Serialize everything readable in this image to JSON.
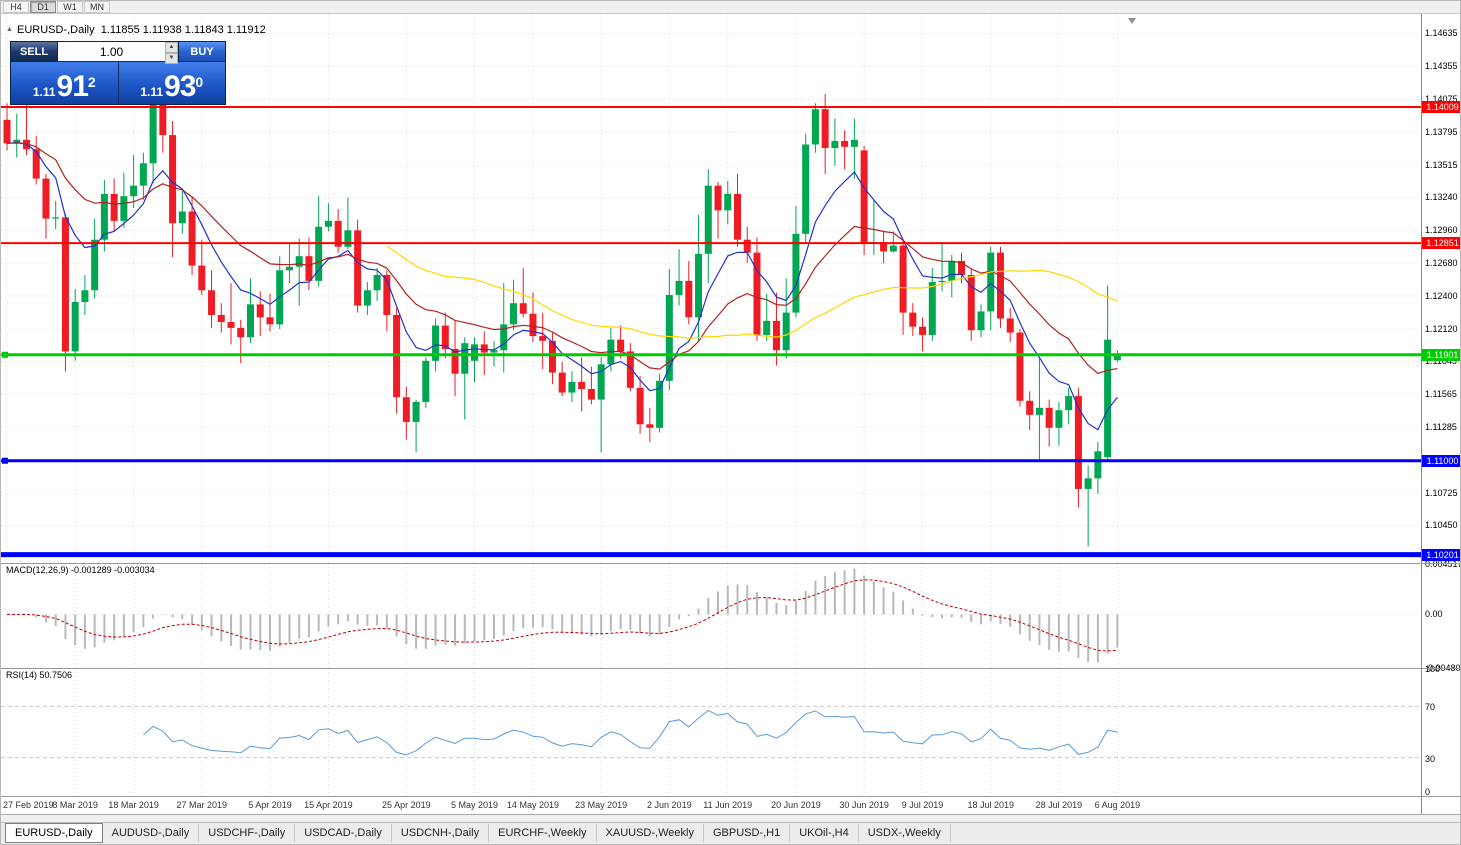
{
  "toolbar": {
    "timeframes": [
      "H4",
      "D1",
      "W1",
      "MN"
    ],
    "active_timeframe": "D1"
  },
  "chart": {
    "symbol_period": "EURUSD-,Daily",
    "ohlc_text": "1.11855 1.11938 1.11843 1.11912"
  },
  "icons": {
    "collapse_arrow": "▲",
    "spinner_up": "▲",
    "spinner_down": "▼"
  },
  "trade_panel": {
    "sell_label": "SELL",
    "buy_label": "BUY",
    "volume": "1.00",
    "sell_price": {
      "small": "1.11",
      "big": "91",
      "sup": "2"
    },
    "buy_price": {
      "small": "1.11",
      "big": "93",
      "sup": "0"
    }
  },
  "indicators": {
    "macd": {
      "name": "MACD(12,26,9)",
      "values": "-0.001289 -0.003034",
      "fast": 12,
      "slow": 26,
      "signal": 9,
      "axis_labels": [
        "0.004517",
        "0.00",
        "-0.004806"
      ]
    },
    "rsi": {
      "name": "RSI(14)",
      "value": "50.7506",
      "period": 14,
      "axis_labels": [
        "100",
        "70",
        "30",
        "0"
      ],
      "levels": [
        70,
        30
      ]
    }
  },
  "tabs": {
    "items": [
      "EURUSD-,Daily",
      "AUDUSD-,Daily",
      "USDCHF-,Daily",
      "USDCAD-,Daily",
      "USDCNH-,Daily",
      "EURCHF-,Weekly",
      "XAUUSD-,Weekly",
      "GBPUSD-,H1",
      "UKOil-,H4",
      "USDX-,Weekly"
    ],
    "active": "EURUSD-,Daily"
  },
  "chart_data": {
    "type": "candlestick",
    "symbol": "EURUSD-",
    "timeframe": "Daily",
    "up_color": "#00A651",
    "down_color": "#EE1C25",
    "price_ticks": [
      "1.14635",
      "1.14355",
      "1.14075",
      "1.13795",
      "1.13515",
      "1.13240",
      "1.12960",
      "1.12680",
      "1.12400",
      "1.12120",
      "1.11845",
      "1.11565",
      "1.11285",
      "1.10725",
      "1.10450"
    ],
    "hlines": [
      {
        "price": 1.14009,
        "label": "1.14009",
        "color": "#FF0000",
        "width": 2
      },
      {
        "price": 1.12851,
        "label": "1.12851",
        "color": "#FF0000",
        "width": 2
      },
      {
        "price": 1.11901,
        "label": "1.11901",
        "color": "#00CC00",
        "width": 3,
        "anchor": true
      },
      {
        "price": 1.11,
        "label": "1.11000",
        "color": "#0000FF",
        "width": 3,
        "anchor": true
      },
      {
        "price": 1.10201,
        "label": "1.10201",
        "color": "#0000FF",
        "width": 5
      }
    ],
    "moving_averages": [
      {
        "type": "ema",
        "period": 8,
        "color": "#2233CC"
      },
      {
        "type": "ema",
        "period": 20,
        "color": "#B22222"
      },
      {
        "type": "sma",
        "period": 40,
        "color": "#FFD700"
      }
    ],
    "date_labels": [
      {
        "text": "27 Feb 2019",
        "idx": 0
      },
      {
        "text": "8 Mar 2019",
        "idx": 7
      },
      {
        "text": "18 Mar 2019",
        "idx": 13
      },
      {
        "text": "27 Mar 2019",
        "idx": 20
      },
      {
        "text": "5 Apr 2019",
        "idx": 27
      },
      {
        "text": "15 Apr 2019",
        "idx": 33
      },
      {
        "text": "25 Apr 2019",
        "idx": 41
      },
      {
        "text": "5 May 2019",
        "idx": 48
      },
      {
        "text": "14 May 2019",
        "idx": 54
      },
      {
        "text": "23 May 2019",
        "idx": 61
      },
      {
        "text": "2 Jun 2019",
        "idx": 68
      },
      {
        "text": "11 Jun 2019",
        "idx": 74
      },
      {
        "text": "20 Jun 2019",
        "idx": 81
      },
      {
        "text": "30 Jun 2019",
        "idx": 88
      },
      {
        "text": "9 Jul 2019",
        "idx": 94
      },
      {
        "text": "18 Jul 2019",
        "idx": 101
      },
      {
        "text": "28 Jul 2019",
        "idx": 108
      },
      {
        "text": "6 Aug 2019",
        "idx": 114
      }
    ],
    "ohlc": [
      [
        1.139,
        1.1404,
        1.1364,
        1.137
      ],
      [
        1.137,
        1.1395,
        1.1358,
        1.1373
      ],
      [
        1.1373,
        1.1408,
        1.136,
        1.1365
      ],
      [
        1.1365,
        1.1376,
        1.1335,
        1.134
      ],
      [
        1.134,
        1.1344,
        1.1289,
        1.1306
      ],
      [
        1.1306,
        1.1321,
        1.1297,
        1.1307
      ],
      [
        1.1307,
        1.131,
        1.1176,
        1.1193
      ],
      [
        1.1193,
        1.1246,
        1.1185,
        1.1235
      ],
      [
        1.1235,
        1.1258,
        1.1224,
        1.1245
      ],
      [
        1.1245,
        1.1306,
        1.1238,
        1.1288
      ],
      [
        1.1288,
        1.1339,
        1.1278,
        1.1327
      ],
      [
        1.1327,
        1.134,
        1.1295,
        1.1304
      ],
      [
        1.1304,
        1.1345,
        1.1298,
        1.1325
      ],
      [
        1.1325,
        1.136,
        1.1315,
        1.1334
      ],
      [
        1.1334,
        1.1362,
        1.1322,
        1.1353
      ],
      [
        1.1353,
        1.1412,
        1.1336,
        1.1405
      ],
      [
        1.1405,
        1.1414,
        1.1362,
        1.1377
      ],
      [
        1.1377,
        1.1389,
        1.1273,
        1.1302
      ],
      [
        1.1302,
        1.133,
        1.1293,
        1.1312
      ],
      [
        1.1312,
        1.1325,
        1.1258,
        1.1266
      ],
      [
        1.1266,
        1.1288,
        1.1241,
        1.1245
      ],
      [
        1.1245,
        1.1262,
        1.1213,
        1.1224
      ],
      [
        1.1224,
        1.1234,
        1.1209,
        1.1218
      ],
      [
        1.1218,
        1.1251,
        1.1199,
        1.1213
      ],
      [
        1.1213,
        1.122,
        1.1183,
        1.1205
      ],
      [
        1.1205,
        1.1255,
        1.12,
        1.1233
      ],
      [
        1.1233,
        1.1244,
        1.1206,
        1.1222
      ],
      [
        1.1222,
        1.1242,
        1.121,
        1.1216
      ],
      [
        1.1216,
        1.1274,
        1.1212,
        1.1262
      ],
      [
        1.1262,
        1.1285,
        1.1251,
        1.1265
      ],
      [
        1.1265,
        1.1289,
        1.1232,
        1.1274
      ],
      [
        1.1274,
        1.129,
        1.1245,
        1.1253
      ],
      [
        1.1253,
        1.1325,
        1.1248,
        1.1299
      ],
      [
        1.1299,
        1.1319,
        1.1295,
        1.1304
      ],
      [
        1.1304,
        1.1314,
        1.1277,
        1.1282
      ],
      [
        1.1282,
        1.1324,
        1.128,
        1.1296
      ],
      [
        1.1296,
        1.1305,
        1.1226,
        1.1232
      ],
      [
        1.1232,
        1.1252,
        1.1224,
        1.1245
      ],
      [
        1.1245,
        1.1264,
        1.1236,
        1.1258
      ],
      [
        1.1258,
        1.1262,
        1.121,
        1.1224
      ],
      [
        1.1224,
        1.123,
        1.114,
        1.1154
      ],
      [
        1.1154,
        1.1163,
        1.1118,
        1.1133
      ],
      [
        1.1133,
        1.1152,
        1.1107,
        1.115
      ],
      [
        1.115,
        1.1188,
        1.1145,
        1.1185
      ],
      [
        1.1185,
        1.1221,
        1.1176,
        1.1215
      ],
      [
        1.1215,
        1.1226,
        1.1187,
        1.1195
      ],
      [
        1.1195,
        1.1219,
        1.1155,
        1.1174
      ],
      [
        1.1174,
        1.1205,
        1.1135,
        1.12
      ],
      [
        1.1185,
        1.1205,
        1.1167,
        1.1199
      ],
      [
        1.1199,
        1.121,
        1.1173,
        1.1192
      ],
      [
        1.1192,
        1.1202,
        1.118,
        1.1194
      ],
      [
        1.1194,
        1.1251,
        1.1175,
        1.1216
      ],
      [
        1.1216,
        1.1254,
        1.1211,
        1.1234
      ],
      [
        1.1234,
        1.1264,
        1.1222,
        1.1225
      ],
      [
        1.1225,
        1.1243,
        1.1201,
        1.1206
      ],
      [
        1.1206,
        1.1226,
        1.1178,
        1.1202
      ],
      [
        1.1202,
        1.121,
        1.1165,
        1.1175
      ],
      [
        1.1175,
        1.1184,
        1.1155,
        1.1158
      ],
      [
        1.1158,
        1.1176,
        1.115,
        1.1167
      ],
      [
        1.1167,
        1.1188,
        1.1142,
        1.1161
      ],
      [
        1.1161,
        1.118,
        1.1148,
        1.1152
      ],
      [
        1.1152,
        1.1188,
        1.1107,
        1.1182
      ],
      [
        1.1182,
        1.1213,
        1.1176,
        1.1203
      ],
      [
        1.1203,
        1.1215,
        1.1187,
        1.1193
      ],
      [
        1.1193,
        1.12,
        1.1159,
        1.1162
      ],
      [
        1.1162,
        1.1172,
        1.1123,
        1.1131
      ],
      [
        1.1131,
        1.1145,
        1.1116,
        1.1128
      ],
      [
        1.1128,
        1.1174,
        1.1124,
        1.1168
      ],
      [
        1.1168,
        1.1263,
        1.116,
        1.1241
      ],
      [
        1.1241,
        1.128,
        1.1232,
        1.1253
      ],
      [
        1.1253,
        1.127,
        1.1216,
        1.1222
      ],
      [
        1.1222,
        1.1309,
        1.1201,
        1.1276
      ],
      [
        1.1276,
        1.1348,
        1.1251,
        1.1334
      ],
      [
        1.1334,
        1.1337,
        1.1289,
        1.1313
      ],
      [
        1.1313,
        1.1338,
        1.1301,
        1.1327
      ],
      [
        1.1327,
        1.1344,
        1.1282,
        1.1288
      ],
      [
        1.1288,
        1.1299,
        1.1268,
        1.1277
      ],
      [
        1.1277,
        1.129,
        1.1202,
        1.1207
      ],
      [
        1.1207,
        1.1242,
        1.1202,
        1.1219
      ],
      [
        1.1219,
        1.1243,
        1.1181,
        1.1194
      ],
      [
        1.1194,
        1.1255,
        1.1187,
        1.1226
      ],
      [
        1.1226,
        1.1317,
        1.1222,
        1.1293
      ],
      [
        1.1293,
        1.1378,
        1.1285,
        1.1369
      ],
      [
        1.1369,
        1.1404,
        1.1362,
        1.1399
      ],
      [
        1.1399,
        1.1412,
        1.1344,
        1.1366
      ],
      [
        1.1366,
        1.1391,
        1.1351,
        1.1372
      ],
      [
        1.1372,
        1.1381,
        1.1348,
        1.1367
      ],
      [
        1.1367,
        1.1391,
        1.134,
        1.1373
      ],
      [
        1.1364,
        1.1368,
        1.1275,
        1.1285
      ],
      [
        1.1285,
        1.1322,
        1.1275,
        1.1286
      ],
      [
        1.1286,
        1.1295,
        1.1268,
        1.1278
      ],
      [
        1.1278,
        1.1295,
        1.1277,
        1.1283
      ],
      [
        1.1283,
        1.1288,
        1.1207,
        1.1226
      ],
      [
        1.1226,
        1.1234,
        1.1206,
        1.1214
      ],
      [
        1.1214,
        1.1222,
        1.1193,
        1.1207
      ],
      [
        1.1207,
        1.1264,
        1.1202,
        1.1252
      ],
      [
        1.1252,
        1.1286,
        1.1244,
        1.1253
      ],
      [
        1.1253,
        1.1275,
        1.1239,
        1.127
      ],
      [
        1.127,
        1.1277,
        1.1251,
        1.1258
      ],
      [
        1.1258,
        1.1263,
        1.1202,
        1.1211
      ],
      [
        1.1211,
        1.1233,
        1.1205,
        1.1227
      ],
      [
        1.1227,
        1.1282,
        1.1211,
        1.1277
      ],
      [
        1.1277,
        1.1282,
        1.1213,
        1.1221
      ],
      [
        1.1221,
        1.123,
        1.1201,
        1.1209
      ],
      [
        1.1209,
        1.1212,
        1.1146,
        1.1151
      ],
      [
        1.1151,
        1.1159,
        1.1126,
        1.1139
      ],
      [
        1.1139,
        1.1187,
        1.1101,
        1.1145
      ],
      [
        1.1145,
        1.1152,
        1.1112,
        1.1128
      ],
      [
        1.1128,
        1.115,
        1.1113,
        1.1143
      ],
      [
        1.1143,
        1.1162,
        1.1131,
        1.1155
      ],
      [
        1.1155,
        1.1162,
        1.106,
        1.1076
      ],
      [
        1.1076,
        1.1096,
        1.1027,
        1.1085
      ],
      [
        1.1085,
        1.1116,
        1.1072,
        1.1108
      ],
      [
        1.1103,
        1.1249,
        1.1101,
        1.1203
      ],
      [
        1.11855,
        1.11938,
        1.11843,
        1.11912
      ]
    ]
  }
}
